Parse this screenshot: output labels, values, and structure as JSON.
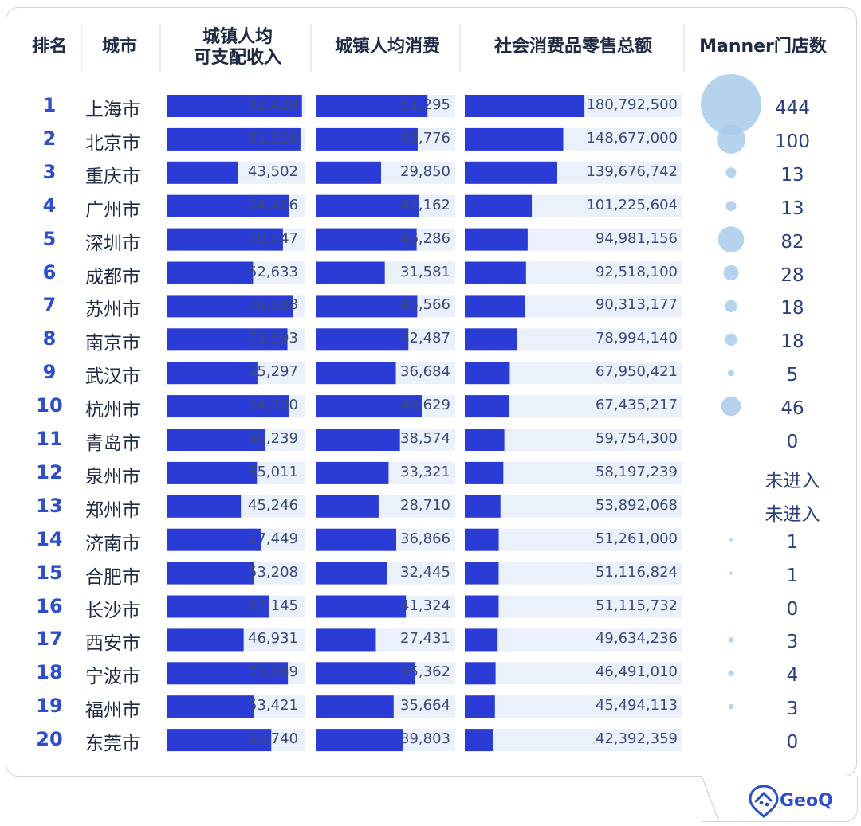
{
  "headers": {
    "rank": "排名",
    "city": "城市",
    "income_line1": "城镇人均",
    "income_line2": "可支配收入",
    "consumption": "城镇人均消费",
    "retail": "社会消费品零售总额",
    "stores": "Manner门店数"
  },
  "brand": "GeoQ",
  "colors": {
    "bar": "#2a3bd6",
    "track": "#eaf1fb",
    "bubble": "#a8cbea",
    "rank": "#2f4fc8"
  },
  "chart_data": {
    "type": "table",
    "columns": [
      "排名",
      "城市",
      "城镇人均可支配收入",
      "城镇人均消费",
      "社会消费品零售总额",
      "Manner门店数"
    ],
    "rows": [
      {
        "rank": "1",
        "city": "上海市",
        "income": 82429,
        "income_label": "82,429",
        "consumption": 51295,
        "consumption_label": "51,295",
        "retail": 180792500,
        "retail_label": "180,792,500",
        "stores": 444,
        "stores_label": "444"
      },
      {
        "rank": "2",
        "city": "北京市",
        "income": 81518,
        "income_label": "81,518",
        "consumption": 46776,
        "consumption_label": "46,776",
        "retail": 148677000,
        "retail_label": "148,677,000",
        "stores": 100,
        "stores_label": "100"
      },
      {
        "rank": "3",
        "city": "重庆市",
        "income": 43502,
        "income_label": "43,502",
        "consumption": 29850,
        "consumption_label": "29,850",
        "retail": 139676742,
        "retail_label": "139,676,742",
        "stores": 13,
        "stores_label": "13"
      },
      {
        "rank": "4",
        "city": "广州市",
        "income": 74416,
        "income_label": "74,416",
        "consumption": 47162,
        "consumption_label": "47,162",
        "retail": 101225604,
        "retail_label": "101,225,604",
        "stores": 13,
        "stores_label": "13"
      },
      {
        "rank": "5",
        "city": "深圳市",
        "income": 70847,
        "income_label": "70,847",
        "consumption": 46286,
        "consumption_label": "46,286",
        "retail": 94981156,
        "retail_label": "94,981,156",
        "stores": 82,
        "stores_label": "82"
      },
      {
        "rank": "6",
        "city": "成都市",
        "income": 52633,
        "income_label": "52,633",
        "consumption": 31581,
        "consumption_label": "31,581",
        "retail": 92518100,
        "retail_label": "92,518,100",
        "stores": 28,
        "stores_label": "28"
      },
      {
        "rank": "7",
        "city": "苏州市",
        "income": 76888,
        "income_label": "76,888",
        "consumption": 46566,
        "consumption_label": "46,566",
        "retail": 90313177,
        "retail_label": "90,313,177",
        "stores": 18,
        "stores_label": "18"
      },
      {
        "rank": "8",
        "city": "南京市",
        "income": 73593,
        "income_label": "73,593",
        "consumption": 42487,
        "consumption_label": "42,487",
        "retail": 78994140,
        "retail_label": "78,994,140",
        "stores": 18,
        "stores_label": "18"
      },
      {
        "rank": "9",
        "city": "武汉市",
        "income": 55297,
        "income_label": "55,297",
        "consumption": 36684,
        "consumption_label": "36,684",
        "retail": 67950421,
        "retail_label": "67,950,421",
        "stores": 5,
        "stores_label": "5"
      },
      {
        "rank": "10",
        "city": "杭州市",
        "income": 74700,
        "income_label": "74,700",
        "consumption": 48629,
        "consumption_label": "48,629",
        "retail": 67435217,
        "retail_label": "67,435,217",
        "stores": 46,
        "stores_label": "46"
      },
      {
        "rank": "11",
        "city": "青岛市",
        "income": 60239,
        "income_label": "60,239",
        "consumption": 38574,
        "consumption_label": "38,574",
        "retail": 59754300,
        "retail_label": "59,754,300",
        "stores": 0,
        "stores_label": "0"
      },
      {
        "rank": "12",
        "city": "泉州市",
        "income": 55011,
        "income_label": "55,011",
        "consumption": 33321,
        "consumption_label": "33,321",
        "retail": 58197239,
        "retail_label": "58,197,239",
        "stores": null,
        "stores_label": "未进入"
      },
      {
        "rank": "13",
        "city": "郑州市",
        "income": 45246,
        "income_label": "45,246",
        "consumption": 28710,
        "consumption_label": "28,710",
        "retail": 53892068,
        "retail_label": "53,892,068",
        "stores": null,
        "stores_label": "未进入"
      },
      {
        "rank": "14",
        "city": "济南市",
        "income": 57449,
        "income_label": "57,449",
        "consumption": 36866,
        "consumption_label": "36,866",
        "retail": 51261000,
        "retail_label": "51,261,000",
        "stores": 1,
        "stores_label": "1"
      },
      {
        "rank": "15",
        "city": "合肥市",
        "income": 53208,
        "income_label": "53,208",
        "consumption": 32445,
        "consumption_label": "32,445",
        "retail": 51116824,
        "retail_label": "51,116,824",
        "stores": 1,
        "stores_label": "1"
      },
      {
        "rank": "16",
        "city": "长沙市",
        "income": 62145,
        "income_label": "62,145",
        "consumption": 41324,
        "consumption_label": "41,324",
        "retail": 51115732,
        "retail_label": "51,115,732",
        "stores": 0,
        "stores_label": "0"
      },
      {
        "rank": "17",
        "city": "西安市",
        "income": 46931,
        "income_label": "46,931",
        "consumption": 27431,
        "consumption_label": "27,431",
        "retail": 49634236,
        "retail_label": "49,634,236",
        "stores": 3,
        "stores_label": "3"
      },
      {
        "rank": "18",
        "city": "宁波市",
        "income": 73869,
        "income_label": "73,869",
        "consumption": 45362,
        "consumption_label": "45,362",
        "retail": 46491010,
        "retail_label": "46,491,010",
        "stores": 4,
        "stores_label": "4"
      },
      {
        "rank": "19",
        "city": "福州市",
        "income": 53421,
        "income_label": "53,421",
        "consumption": 35664,
        "consumption_label": "35,664",
        "retail": 45494113,
        "retail_label": "45,494,113",
        "stores": 3,
        "stores_label": "3"
      },
      {
        "rank": "20",
        "city": "东莞市",
        "income": 63740,
        "income_label": "63,740",
        "consumption": 39803,
        "consumption_label": "39,803",
        "retail": 42392359,
        "retail_label": "42,392,359",
        "stores": 0,
        "stores_label": "0"
      }
    ]
  }
}
